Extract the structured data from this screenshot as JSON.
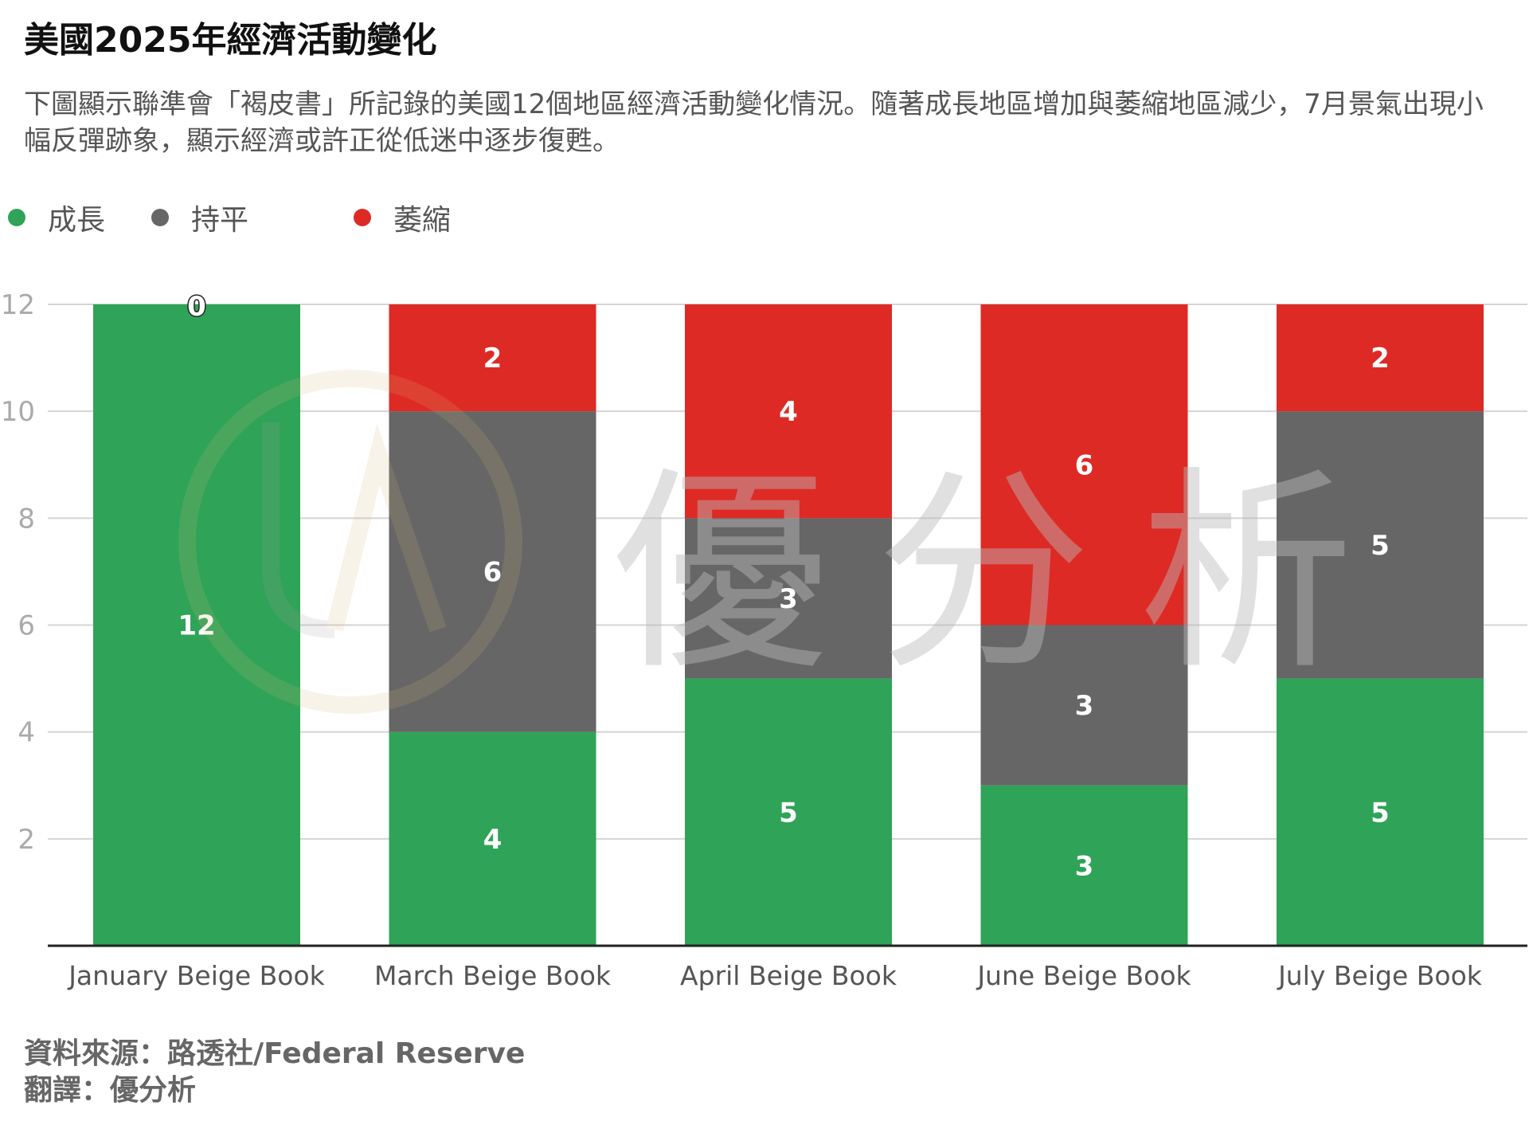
{
  "title": "美國2025年經濟活動變化",
  "subtitle": "下圖顯示聯準會「褐皮書」所記錄的美國12個地區經濟活動變化情況。隨著成長地區增加與萎縮地區減少，7月景氣出現小幅反彈跡象，顯示經濟或許正從低迷中逐步復甦。",
  "legend": {
    "items": [
      {
        "label": "成長",
        "color": "#2fa357"
      },
      {
        "label": "持平",
        "color": "#666666"
      },
      {
        "label": "萎縮",
        "color": "#de2a25"
      }
    ]
  },
  "watermark": {
    "text": "優分析"
  },
  "footer": {
    "source": "資料來源：路透社/Federal Reserve",
    "translation": "翻譯：優分析"
  },
  "chart_data": {
    "type": "bar",
    "stacked": true,
    "categories": [
      "January Beige Book",
      "March Beige Book",
      "April Beige Book",
      "June Beige Book",
      "July Beige Book"
    ],
    "series": [
      {
        "name": "成長",
        "color": "#2fa357",
        "values": [
          12,
          4,
          5,
          3,
          5
        ]
      },
      {
        "name": "持平",
        "color": "#666666",
        "values": [
          0,
          6,
          3,
          3,
          5
        ]
      },
      {
        "name": "萎縮",
        "color": "#de2a25",
        "values": [
          0,
          2,
          4,
          6,
          2
        ]
      }
    ],
    "data_labels": [
      {
        "category": 0,
        "series": 0,
        "label": "12"
      },
      {
        "category": 0,
        "series": 2,
        "label": "0"
      },
      {
        "category": 1,
        "series": 0,
        "label": "4"
      },
      {
        "category": 1,
        "series": 1,
        "label": "6"
      },
      {
        "category": 1,
        "series": 2,
        "label": "2"
      },
      {
        "category": 2,
        "series": 0,
        "label": "5"
      },
      {
        "category": 2,
        "series": 1,
        "label": "3"
      },
      {
        "category": 2,
        "series": 2,
        "label": "4"
      },
      {
        "category": 3,
        "series": 0,
        "label": "3"
      },
      {
        "category": 3,
        "series": 1,
        "label": "3"
      },
      {
        "category": 3,
        "series": 2,
        "label": "6"
      },
      {
        "category": 4,
        "series": 0,
        "label": "5"
      },
      {
        "category": 4,
        "series": 1,
        "label": "5"
      },
      {
        "category": 4,
        "series": 2,
        "label": "2"
      }
    ],
    "yticks": [
      2,
      4,
      6,
      8,
      10,
      12
    ],
    "ylim": [
      0,
      12
    ],
    "grid": true,
    "legend_position": "top-left"
  }
}
